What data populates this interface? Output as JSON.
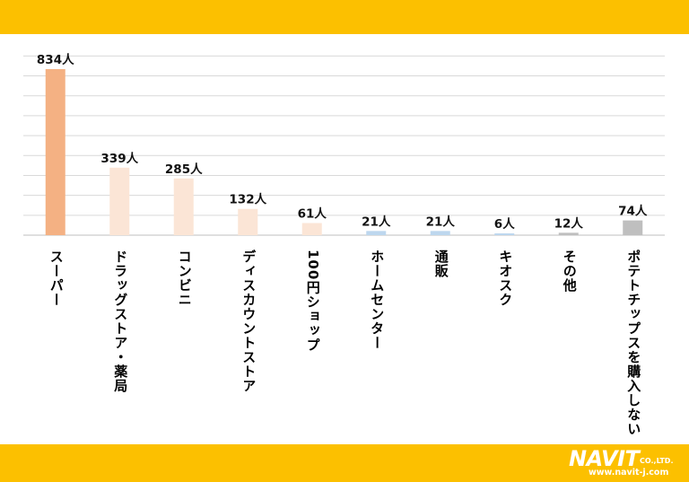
{
  "chart_data": {
    "type": "bar",
    "categories": [
      "スーパー",
      "ドラッグストア・薬局",
      "コンビニ",
      "ディスカウントストア",
      "100円ショップ",
      "ホームセンター",
      "通販",
      "キオスク",
      "その他",
      "ポテトチップスを購入しない"
    ],
    "values": [
      834,
      339,
      285,
      132,
      61,
      21,
      21,
      6,
      12,
      74
    ],
    "data_labels": [
      "834人",
      "339人",
      "285人",
      "132人",
      "61人",
      "21人",
      "21人",
      "6人",
      "12人",
      "74人"
    ],
    "bar_colors": [
      "#f4b183",
      "#fbe5d6",
      "#fbe5d6",
      "#fbe5d6",
      "#fbe5d6",
      "#bdd7ee",
      "#bdd7ee",
      "#bdd7ee",
      "#bfbfbf",
      "#bfbfbf"
    ],
    "ylim": [
      0,
      900
    ],
    "grid": true,
    "legend": "none"
  },
  "logo": {
    "brand": "NAVIT",
    "suffix": "CO.,LTD.",
    "url": "www.navit-j.com"
  },
  "colors": {
    "band": "#fcc000",
    "grid": "#d9d9d9"
  }
}
